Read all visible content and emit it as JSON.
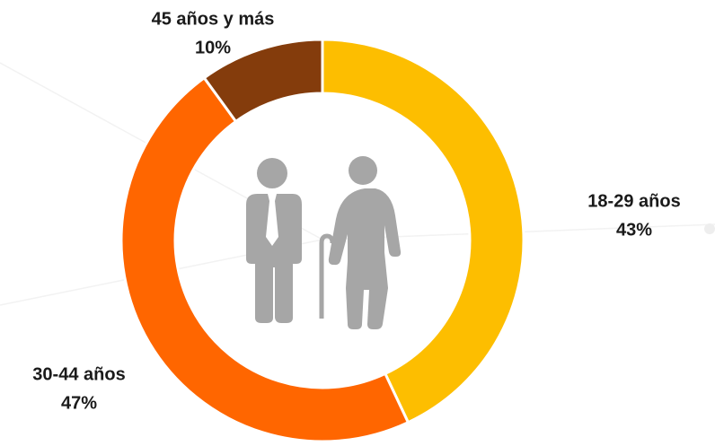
{
  "chart_data": {
    "type": "donut",
    "categories": [
      "18-29 años",
      "30-44 años",
      "45 años y más"
    ],
    "values": [
      43,
      47,
      10
    ],
    "value_labels": [
      "43%",
      "47%",
      "10%"
    ],
    "colors": [
      "#FDBE00",
      "#FF6600",
      "#843C0C"
    ]
  }
}
